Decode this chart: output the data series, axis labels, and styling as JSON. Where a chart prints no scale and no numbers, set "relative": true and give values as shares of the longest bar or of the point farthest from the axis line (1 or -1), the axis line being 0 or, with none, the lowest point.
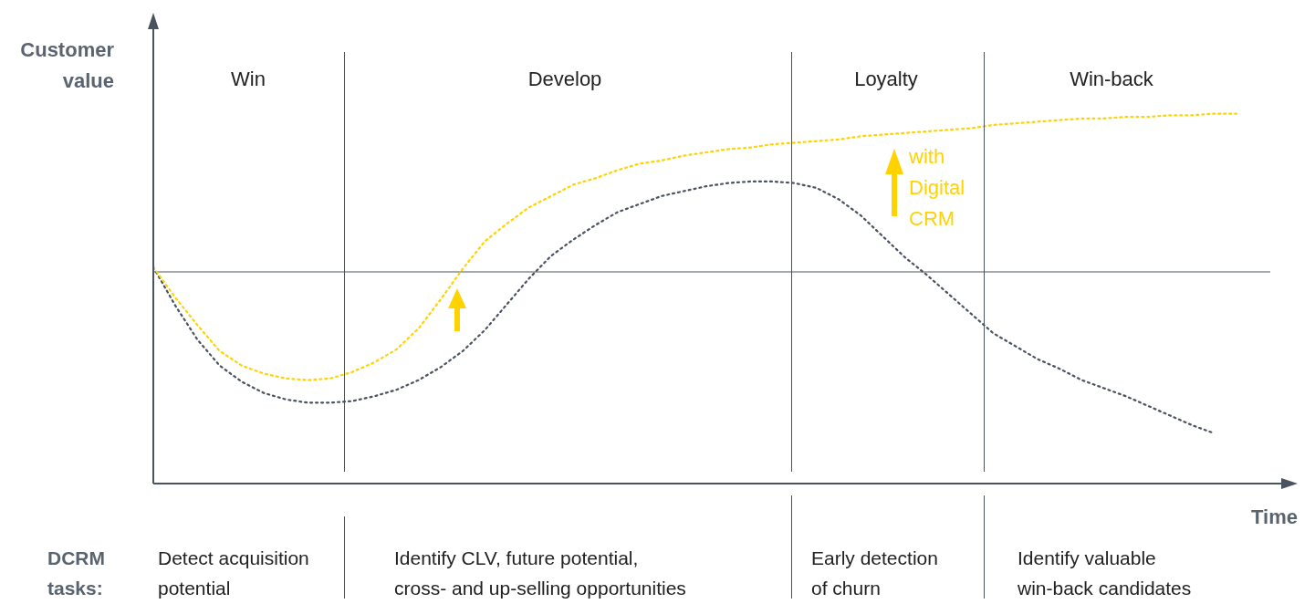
{
  "chart_data": {
    "type": "line",
    "relative": true,
    "xlabel": "Time",
    "ylabel": "Customer value",
    "marker": "none",
    "line_style": "dotted",
    "categories": [
      null,
      null,
      null,
      null,
      null,
      null,
      null,
      null,
      null,
      null,
      null,
      null,
      null,
      null,
      null,
      null,
      null,
      null,
      null,
      null,
      null,
      null,
      null,
      null,
      null,
      null,
      null,
      null,
      null,
      null,
      null,
      null,
      null,
      null,
      null,
      null,
      null,
      null,
      null,
      null,
      null,
      null,
      null,
      null,
      null,
      null,
      null,
      null,
      null,
      null
    ],
    "series": [
      {
        "name": "with Digital CRM",
        "color": "#ffd200",
        "values": [
          0.03,
          -0.16,
          -0.33,
          -0.49,
          -0.58,
          -0.63,
          -0.66,
          -0.67,
          -0.66,
          -0.62,
          -0.56,
          -0.48,
          -0.35,
          -0.17,
          0.02,
          0.19,
          0.3,
          0.4,
          0.47,
          0.54,
          0.58,
          0.63,
          0.67,
          0.69,
          0.72,
          0.74,
          0.76,
          0.77,
          0.79,
          0.8,
          0.81,
          0.82,
          0.84,
          0.85,
          0.86,
          0.87,
          0.88,
          0.89,
          0.91,
          0.92,
          0.93,
          0.94,
          0.95,
          0.95,
          0.96,
          0.96,
          0.97,
          0.97,
          0.98,
          0.98
        ]
      },
      {
        "color": "#4a5360",
        "values": [
          0.03,
          -0.21,
          -0.42,
          -0.58,
          -0.68,
          -0.75,
          -0.79,
          -0.81,
          -0.81,
          -0.8,
          -0.77,
          -0.73,
          -0.67,
          -0.59,
          -0.49,
          -0.36,
          -0.2,
          -0.04,
          0.1,
          0.2,
          0.29,
          0.37,
          0.42,
          0.47,
          0.5,
          0.53,
          0.55,
          0.56,
          0.56,
          0.55,
          0.52,
          0.45,
          0.35,
          0.22,
          0.09,
          -0.02,
          -0.14,
          -0.26,
          -0.38,
          -0.46,
          -0.54,
          -0.6,
          -0.67,
          -0.72,
          -0.77,
          -0.83,
          -0.89,
          -0.95,
          -1.0,
          null
        ]
      }
    ],
    "annotations": [
      "Win",
      "Develop",
      "Loyalty",
      "Win-back",
      "DCRM\ntasks:",
      "Detect acquisition\npotential",
      "Identify CLV, future potential,\ncross- and up-selling opportunities",
      "Early detection\nof churn",
      "Identify valuable\nwin-back candidates"
    ]
  }
}
